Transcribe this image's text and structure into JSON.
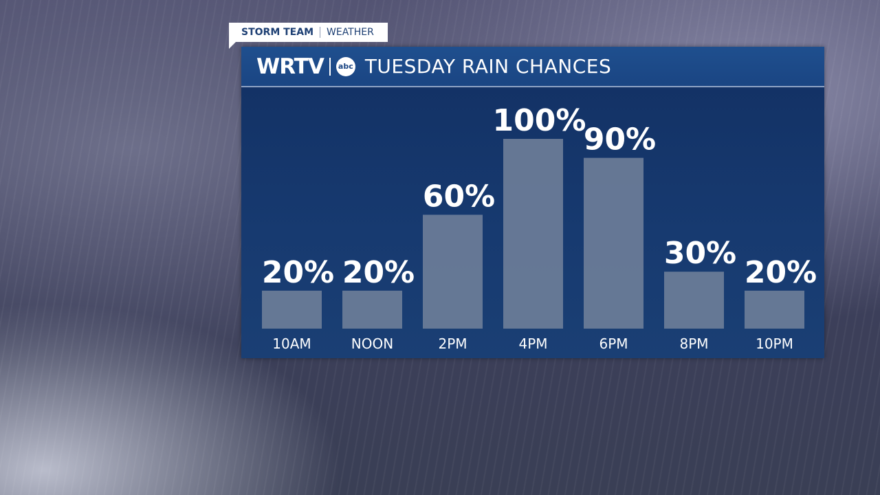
{
  "header": {
    "tag": "STORM TEAM",
    "section": "WEATHER",
    "station": "WRTV",
    "network": "abc"
  },
  "chart_data": {
    "type": "bar",
    "title": "TUESDAY RAIN CHANCES",
    "categories": [
      "10AM",
      "NOON",
      "2PM",
      "4PM",
      "6PM",
      "8PM",
      "10PM"
    ],
    "values": [
      20,
      20,
      60,
      100,
      90,
      30,
      20
    ],
    "value_labels": [
      "20%",
      "20%",
      "60%",
      "100%",
      "90%",
      "30%",
      "20%"
    ],
    "color": "#6e7e99"
  }
}
